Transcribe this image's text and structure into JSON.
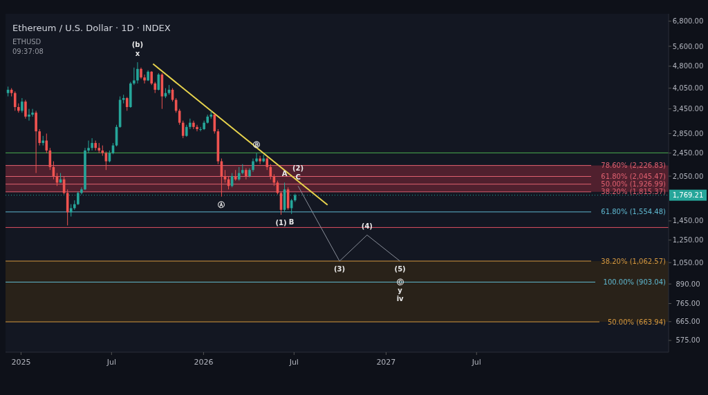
{
  "chart_data": {
    "type": "candlestick",
    "title": "Ethereum / U.S. Dollar · 1D · INDEX",
    "log": "y",
    "x": [
      "2024-12-06",
      "2024-12-13",
      "2024-12-20",
      "2024-12-27",
      "2025-01-03",
      "2025-01-10",
      "2025-01-17",
      "2025-01-24",
      "2025-01-31",
      "2025-02-07",
      "2025-02-14",
      "2025-02-21",
      "2025-02-28",
      "2025-03-07",
      "2025-03-14",
      "2025-03-21",
      "2025-03-28",
      "2025-04-04",
      "2025-04-11",
      "2025-04-18",
      "2025-04-25",
      "2025-05-02",
      "2025-05-09",
      "2025-05-16",
      "2025-05-23",
      "2025-05-30",
      "2025-06-06",
      "2025-06-13",
      "2025-06-20",
      "2025-06-27",
      "2025-07-04",
      "2025-07-11",
      "2025-07-18",
      "2025-07-25",
      "2025-08-01",
      "2025-08-08",
      "2025-08-15",
      "2025-08-22",
      "2025-08-29",
      "2025-09-05",
      "2025-09-12",
      "2025-09-19",
      "2025-09-26",
      "2025-10-03",
      "2025-10-10",
      "2025-10-17",
      "2025-10-24",
      "2025-10-31",
      "2025-11-07",
      "2025-11-14",
      "2025-11-21",
      "2025-11-28",
      "2025-12-05",
      "2025-12-12",
      "2025-12-19",
      "2025-12-26",
      "2026-01-02",
      "2026-01-09",
      "2026-01-16",
      "2026-01-23",
      "2026-01-30",
      "2026-02-06",
      "2026-02-13",
      "2026-02-20",
      "2026-02-27",
      "2026-03-06",
      "2026-03-13",
      "2026-03-20",
      "2026-03-27",
      "2026-04-03",
      "2026-04-10",
      "2026-04-17",
      "2026-04-24",
      "2026-05-01",
      "2026-05-08",
      "2026-05-15",
      "2026-05-22",
      "2026-05-29",
      "2026-06-05",
      "2026-06-12",
      "2026-06-19",
      "2026-06-26",
      "2026-07-03"
    ],
    "ohlc": [
      [
        3900,
        4100,
        3800,
        4000
      ],
      [
        4000,
        4050,
        3800,
        3900
      ],
      [
        3900,
        3950,
        3400,
        3500
      ],
      [
        3500,
        3600,
        3350,
        3400
      ],
      [
        3400,
        3750,
        3350,
        3650
      ],
      [
        3650,
        3700,
        3200,
        3250
      ],
      [
        3250,
        3450,
        3150,
        3300
      ],
      [
        3300,
        3450,
        3250,
        3350
      ],
      [
        3350,
        3400,
        2100,
        2900
      ],
      [
        2900,
        2950,
        2600,
        2650
      ],
      [
        2650,
        2800,
        2600,
        2700
      ],
      [
        2700,
        2850,
        2450,
        2500
      ],
      [
        2500,
        2550,
        2150,
        2200
      ],
      [
        2200,
        2300,
        2000,
        2050
      ],
      [
        2050,
        2100,
        1900,
        1950
      ],
      [
        1950,
        2100,
        1950,
        2000
      ],
      [
        2000,
        2050,
        1780,
        1800
      ],
      [
        1800,
        1850,
        1400,
        1550
      ],
      [
        1550,
        1650,
        1500,
        1600
      ],
      [
        1600,
        1700,
        1580,
        1650
      ],
      [
        1650,
        1820,
        1640,
        1800
      ],
      [
        1800,
        1880,
        1780,
        1850
      ],
      [
        1850,
        2550,
        1840,
        2500
      ],
      [
        2500,
        2700,
        2450,
        2550
      ],
      [
        2550,
        2750,
        2500,
        2650
      ],
      [
        2650,
        2700,
        2500,
        2550
      ],
      [
        2550,
        2650,
        2450,
        2500
      ],
      [
        2500,
        2600,
        2400,
        2450
      ],
      [
        2450,
        2480,
        2150,
        2300
      ],
      [
        2300,
        2500,
        2280,
        2450
      ],
      [
        2450,
        2650,
        2430,
        2600
      ],
      [
        2600,
        3050,
        2580,
        3000
      ],
      [
        3000,
        3800,
        2980,
        3700
      ],
      [
        3700,
        3850,
        3600,
        3750
      ],
      [
        3750,
        3780,
        3400,
        3500
      ],
      [
        3500,
        4250,
        3480,
        4200
      ],
      [
        4200,
        4750,
        4150,
        4300
      ],
      [
        4300,
        4950,
        4200,
        4700
      ],
      [
        4700,
        4750,
        4350,
        4400
      ],
      [
        4400,
        4500,
        4200,
        4300
      ],
      [
        4300,
        4650,
        4280,
        4600
      ],
      [
        4600,
        4620,
        4150,
        4200
      ],
      [
        4200,
        4250,
        3900,
        4000
      ],
      [
        4000,
        4550,
        3980,
        4500
      ],
      [
        4500,
        4550,
        3450,
        3800
      ],
      [
        3800,
        4050,
        3750,
        3900
      ],
      [
        3900,
        4150,
        3850,
        4000
      ],
      [
        4000,
        4050,
        3650,
        3700
      ],
      [
        3700,
        3750,
        3350,
        3400
      ],
      [
        3400,
        3450,
        3050,
        3100
      ],
      [
        3100,
        3150,
        2750,
        2800
      ],
      [
        2800,
        3050,
        2780,
        3000
      ],
      [
        3000,
        3200,
        2950,
        3100
      ],
      [
        3100,
        3150,
        2950,
        3000
      ],
      [
        3000,
        3050,
        2900,
        2950
      ],
      [
        2950,
        3000,
        2900,
        2950
      ],
      [
        2950,
        3150,
        2930,
        3100
      ],
      [
        3100,
        3300,
        3080,
        3250
      ],
      [
        3250,
        3400,
        3200,
        3300
      ],
      [
        3300,
        3320,
        2850,
        2900
      ],
      [
        2900,
        2950,
        2250,
        2300
      ],
      [
        2300,
        2350,
        1750,
        2050
      ],
      [
        2050,
        2150,
        1950,
        2000
      ],
      [
        2000,
        2050,
        1850,
        1900
      ],
      [
        1900,
        2100,
        1880,
        2050
      ],
      [
        2050,
        2150,
        1980,
        2000
      ],
      [
        2000,
        2200,
        1980,
        2100
      ],
      [
        2100,
        2250,
        2080,
        2150
      ],
      [
        2150,
        2180,
        2000,
        2050
      ],
      [
        2050,
        2180,
        2030,
        2150
      ],
      [
        2150,
        2350,
        2120,
        2300
      ],
      [
        2300,
        2450,
        2280,
        2350
      ],
      [
        2350,
        2400,
        2250,
        2300
      ],
      [
        2300,
        2420,
        2280,
        2350
      ],
      [
        2350,
        2380,
        2150,
        2200
      ],
      [
        2200,
        2250,
        2000,
        2050
      ],
      [
        2050,
        2080,
        1900,
        1950
      ],
      [
        1950,
        1980,
        1780,
        1800
      ],
      [
        1800,
        1820,
        1520,
        1580
      ],
      [
        1580,
        1950,
        1560,
        1850
      ],
      [
        1850,
        1880,
        1580,
        1600
      ],
      [
        1600,
        1720,
        1530,
        1700
      ],
      [
        1700,
        1790,
        1680,
        1769.21
      ]
    ],
    "series": [
      {
        "type": "line",
        "color": "#e8d44d",
        "x": [
          "2025-09-22",
          "2026-09-06"
        ],
        "values": [
          4885,
          1640
        ]
      },
      {
        "type": "line",
        "color": "#8a8f9a",
        "x": [
          "2026-07-09",
          "2026-09-30",
          "2026-11-24",
          "2027-01-29"
        ],
        "values": [
          1900,
          1062,
          1300,
          1062
        ]
      }
    ],
    "xlim": [
      "2024-12-01",
      "2028-07-19"
    ],
    "ylim": [
      525,
      7200
    ],
    "xticks": [
      {
        "value": "2025-01-01",
        "label": "2025"
      },
      {
        "value": "2025-07-01",
        "label": "Jul"
      },
      {
        "value": "2026-01-01",
        "label": "2026"
      },
      {
        "value": "2026-07-01",
        "label": "Jul"
      },
      {
        "value": "2027-01-01",
        "label": "2027"
      },
      {
        "value": "2027-07-01",
        "label": "Jul"
      }
    ],
    "yticks": [
      {
        "value": 575,
        "label": "575.00"
      },
      {
        "value": 665,
        "label": "665.00"
      },
      {
        "value": 765,
        "label": "765.00"
      },
      {
        "value": 890,
        "label": "890.00"
      },
      {
        "value": 1050,
        "label": "1,050.00"
      },
      {
        "value": 1250,
        "label": "1,250.00"
      },
      {
        "value": 1450,
        "label": "1,450.00"
      },
      {
        "value": 2050,
        "label": "2,050.00"
      },
      {
        "value": 2450,
        "label": "2,450.00"
      },
      {
        "value": 2850,
        "label": "2,850.00"
      },
      {
        "value": 3450,
        "label": "3,450.00"
      },
      {
        "value": 4050,
        "label": "4,050.00"
      },
      {
        "value": 4800,
        "label": "4,800.00"
      },
      {
        "value": 5600,
        "label": "5,600.00"
      },
      {
        "value": 6800,
        "label": "6,800.00"
      }
    ],
    "bands": [
      {
        "axis": "y",
        "from": 1815.37,
        "to": 2226.83,
        "color": "#5c2230"
      },
      {
        "axis": "y",
        "from": 663.94,
        "to": 1062.57,
        "color": "#2e2418"
      }
    ],
    "ref_lines": [
      {
        "axis": "y",
        "value": 2455,
        "color": "#4caf50"
      },
      {
        "axis": "y",
        "value": 2226.83,
        "label": "78.60% (2,226.83)",
        "color": "#e06070"
      },
      {
        "axis": "y",
        "value": 2045.47,
        "label": "61.80% (2,045.47)",
        "color": "#e06070"
      },
      {
        "axis": "y",
        "value": 1926.99,
        "label": "50.00% (1,926.99)",
        "color": "#e06070"
      },
      {
        "axis": "y",
        "value": 1815.37,
        "label": "38.20% (1,815.37)",
        "color": "#e06070"
      },
      {
        "axis": "y",
        "value": 1769.21,
        "label": "1,769.21",
        "color": "#26a69a",
        "line_style": "dotted"
      },
      {
        "axis": "y",
        "value": 1554.48,
        "label": "61.80% (1,554.48)",
        "color": "#5fb8d0"
      },
      {
        "axis": "y",
        "value": 1378,
        "color": "#e05060"
      },
      {
        "axis": "y",
        "value": 1062.57,
        "label": "38.20% (1,062.57)",
        "color": "#d89a40"
      },
      {
        "axis": "y",
        "value": 903.04,
        "label": "100.00% (903.04)",
        "color": "#5fb8d0"
      },
      {
        "axis": "y",
        "value": 663.94,
        "label": "50.00% (663.94)",
        "color": "#d89a40"
      }
    ],
    "annotations": [
      "ETHUSD",
      "09:37:08",
      {
        "text": "x",
        "x": "2025-08-22",
        "y": 4950
      },
      {
        "text": "(b)",
        "x": "2025-08-22",
        "y": 4950
      },
      {
        "text": "Ⓐ",
        "x": "2026-02-06",
        "y": 1750
      },
      {
        "text": "Ⓑ",
        "x": "2026-04-17",
        "y": 2450
      },
      {
        "text": "A",
        "x": "2026-06-12",
        "y": 1950
      },
      {
        "text": "C",
        "x": "2026-07-09",
        "y": 1900
      },
      {
        "text": "(2)",
        "x": "2026-07-09",
        "y": 1900
      },
      {
        "text": "B",
        "x": "2026-06-26",
        "y": 1530
      },
      {
        "text": "(1)",
        "x": "2026-06-05",
        "y": 1520
      },
      {
        "text": "(4)",
        "x": "2026-11-24",
        "y": 1300
      },
      {
        "text": "(3)",
        "x": "2026-09-30",
        "y": 1062
      },
      {
        "text": "(5)",
        "x": "2027-01-29",
        "y": 1062
      },
      {
        "text": "Ⓒ",
        "x": "2027-01-29",
        "y": 903.04
      },
      {
        "text": "y",
        "x": "2027-01-29",
        "y": 903.04
      },
      {
        "text": "iv",
        "x": "2027-01-29",
        "y": 903.04
      }
    ]
  }
}
